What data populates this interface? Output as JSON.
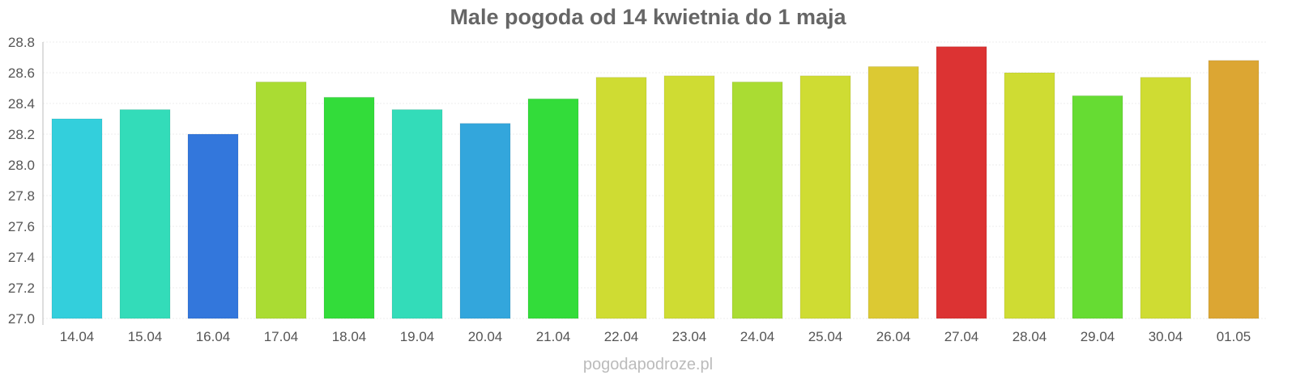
{
  "chart_data": {
    "type": "bar",
    "title": "Male pogoda od 14 kwietnia do 1 maja",
    "xlabel": "",
    "ylabel": "",
    "ylim": [
      27.0,
      28.8
    ],
    "yticks": [
      "27.0",
      "27.2",
      "27.4",
      "27.6",
      "27.8",
      "28.0",
      "28.2",
      "28.4",
      "28.6",
      "28.8"
    ],
    "grid": true,
    "categories": [
      "14.04",
      "15.04",
      "16.04",
      "17.04",
      "18.04",
      "19.04",
      "20.04",
      "21.04",
      "22.04",
      "23.04",
      "24.04",
      "25.04",
      "26.04",
      "27.04",
      "28.04",
      "29.04",
      "30.04",
      "01.05"
    ],
    "values": [
      28.3,
      28.36,
      28.2,
      28.54,
      28.44,
      28.36,
      28.27,
      28.43,
      28.57,
      28.58,
      28.54,
      28.58,
      28.64,
      28.77,
      28.6,
      28.45,
      28.57,
      28.68
    ],
    "colors": [
      "#33cfdc",
      "#33dcb9",
      "#3377dc",
      "#aadc33",
      "#33dc3a",
      "#33dcb9",
      "#33a6dc",
      "#33dc3a",
      "#cfdc33",
      "#cfdc33",
      "#aadc33",
      "#cfdc33",
      "#dcc933",
      "#dc3333",
      "#cfdc33",
      "#66dc33",
      "#cfdc33",
      "#dca633"
    ]
  },
  "credit": "pogodapodroze.pl"
}
